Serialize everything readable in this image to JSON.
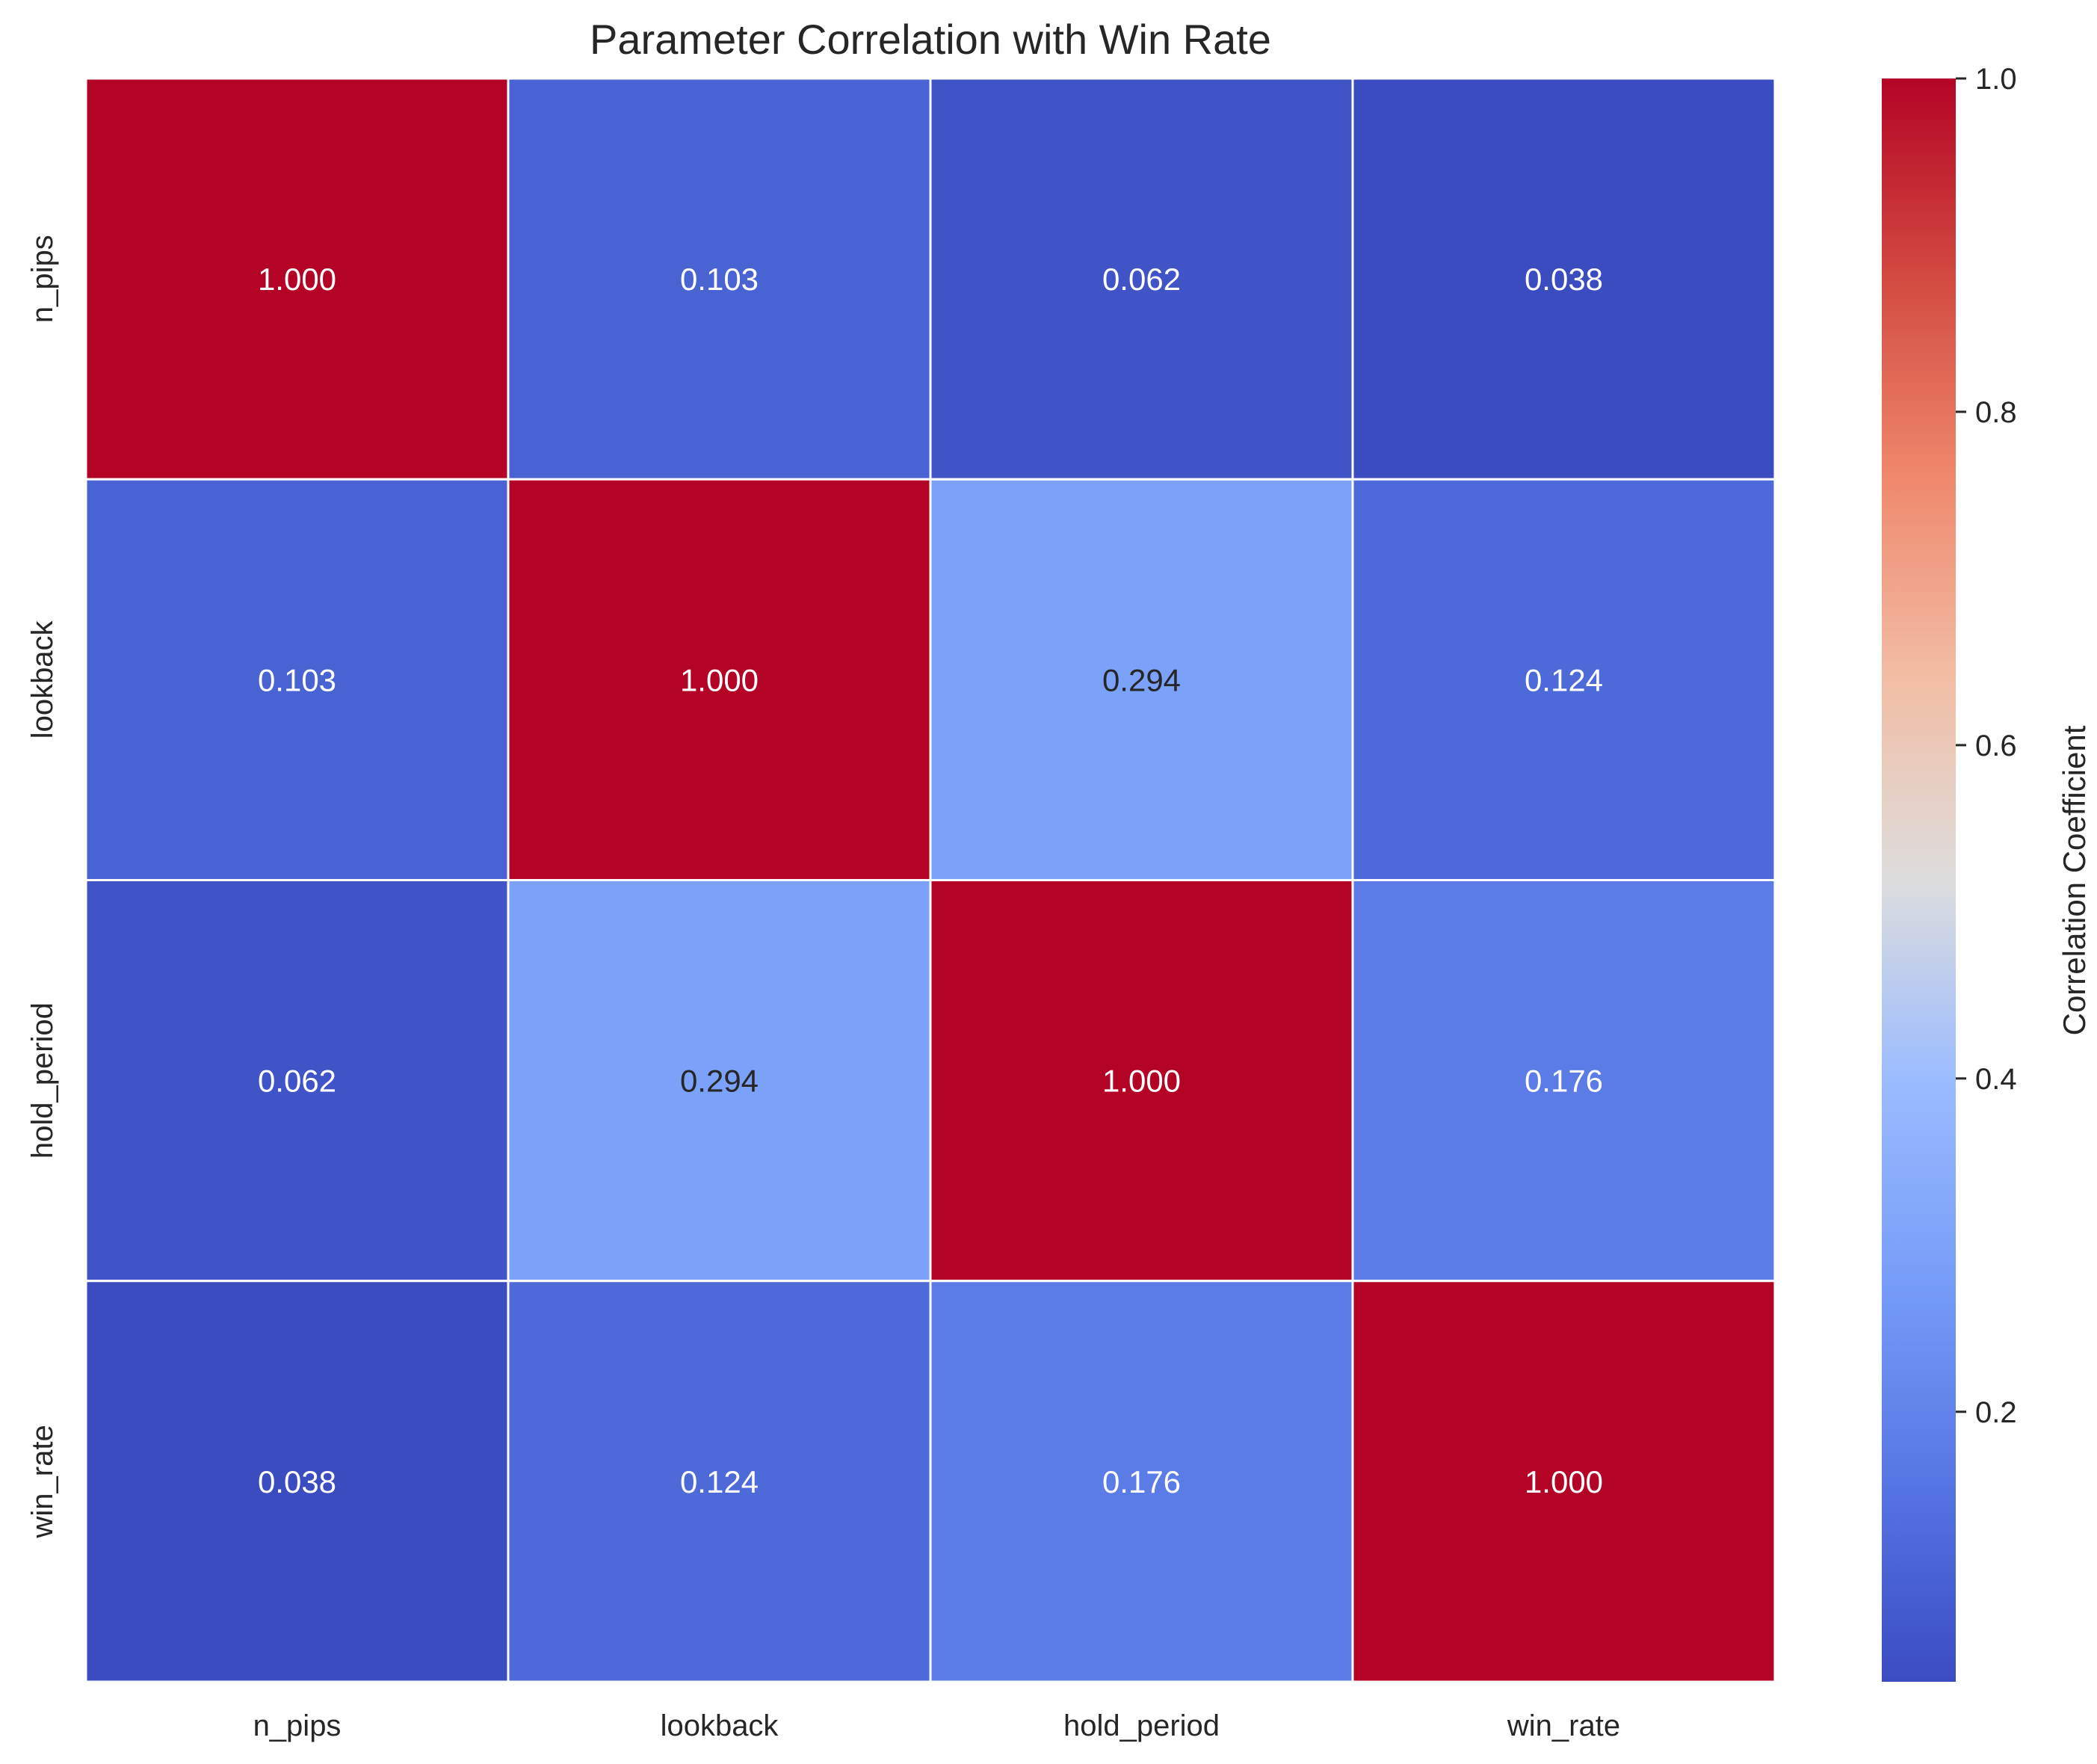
{
  "chart_data": {
    "type": "heatmap",
    "title": "Parameter Correlation with Win Rate",
    "xlabel": "",
    "ylabel": "",
    "x_categories": [
      "n_pips",
      "lookback",
      "hold_period",
      "win_rate"
    ],
    "y_categories": [
      "n_pips",
      "lookback",
      "hold_period",
      "win_rate"
    ],
    "values": [
      [
        1.0,
        0.103,
        0.062,
        0.038
      ],
      [
        0.103,
        1.0,
        0.294,
        0.124
      ],
      [
        0.062,
        0.294,
        1.0,
        0.176
      ],
      [
        0.038,
        0.124,
        0.176,
        1.0
      ]
    ],
    "value_labels": [
      [
        "1.000",
        "0.103",
        "0.062",
        "0.038"
      ],
      [
        "0.103",
        "1.000",
        "0.294",
        "0.124"
      ],
      [
        "0.062",
        "0.294",
        "1.000",
        "0.176"
      ],
      [
        "0.038",
        "0.124",
        "0.176",
        "1.000"
      ]
    ],
    "colorbar": {
      "label": "Correlation Coefficient",
      "range": [
        0.038,
        1.0
      ],
      "ticks": [
        0.2,
        0.4,
        0.6,
        0.8,
        1.0
      ],
      "tick_labels": [
        "0.2",
        "0.4",
        "0.6",
        "0.8",
        "1.0"
      ],
      "colormap": "coolwarm"
    },
    "grid": false,
    "cell_border_color": "#ffffff"
  }
}
